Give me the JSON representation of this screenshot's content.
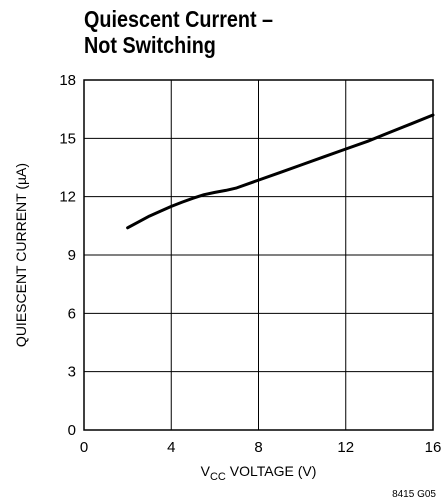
{
  "chart_data": {
    "type": "line",
    "title_line1": "Quiescent Current –",
    "title_line2": "Not Switching",
    "ylabel": "QUIESCENT CURRENT (µA)",
    "xlabel_prefix": "V",
    "xlabel_sub": "CC",
    "xlabel_suffix": " VOLTAGE (V)",
    "xlim": [
      0,
      16
    ],
    "ylim": [
      0,
      18
    ],
    "xticks": [
      0,
      4,
      8,
      12,
      16
    ],
    "yticks": [
      0,
      3,
      6,
      9,
      12,
      15,
      18
    ],
    "grid": true,
    "series": [
      {
        "x": [
          2.0,
          2.5,
          3.0,
          3.5,
          4.0,
          4.5,
          5.0,
          5.5,
          6.0,
          6.5,
          7.0,
          8.0,
          9.0,
          10.0,
          11.0,
          12.0,
          13.0,
          14.0,
          15.0,
          16.0
        ],
        "y": [
          10.4,
          10.7,
          11.0,
          11.25,
          11.5,
          11.72,
          11.92,
          12.1,
          12.22,
          12.32,
          12.45,
          12.85,
          13.25,
          13.65,
          14.05,
          14.45,
          14.85,
          15.3,
          15.75,
          16.2
        ]
      }
    ],
    "footnote": "8415 G05"
  }
}
